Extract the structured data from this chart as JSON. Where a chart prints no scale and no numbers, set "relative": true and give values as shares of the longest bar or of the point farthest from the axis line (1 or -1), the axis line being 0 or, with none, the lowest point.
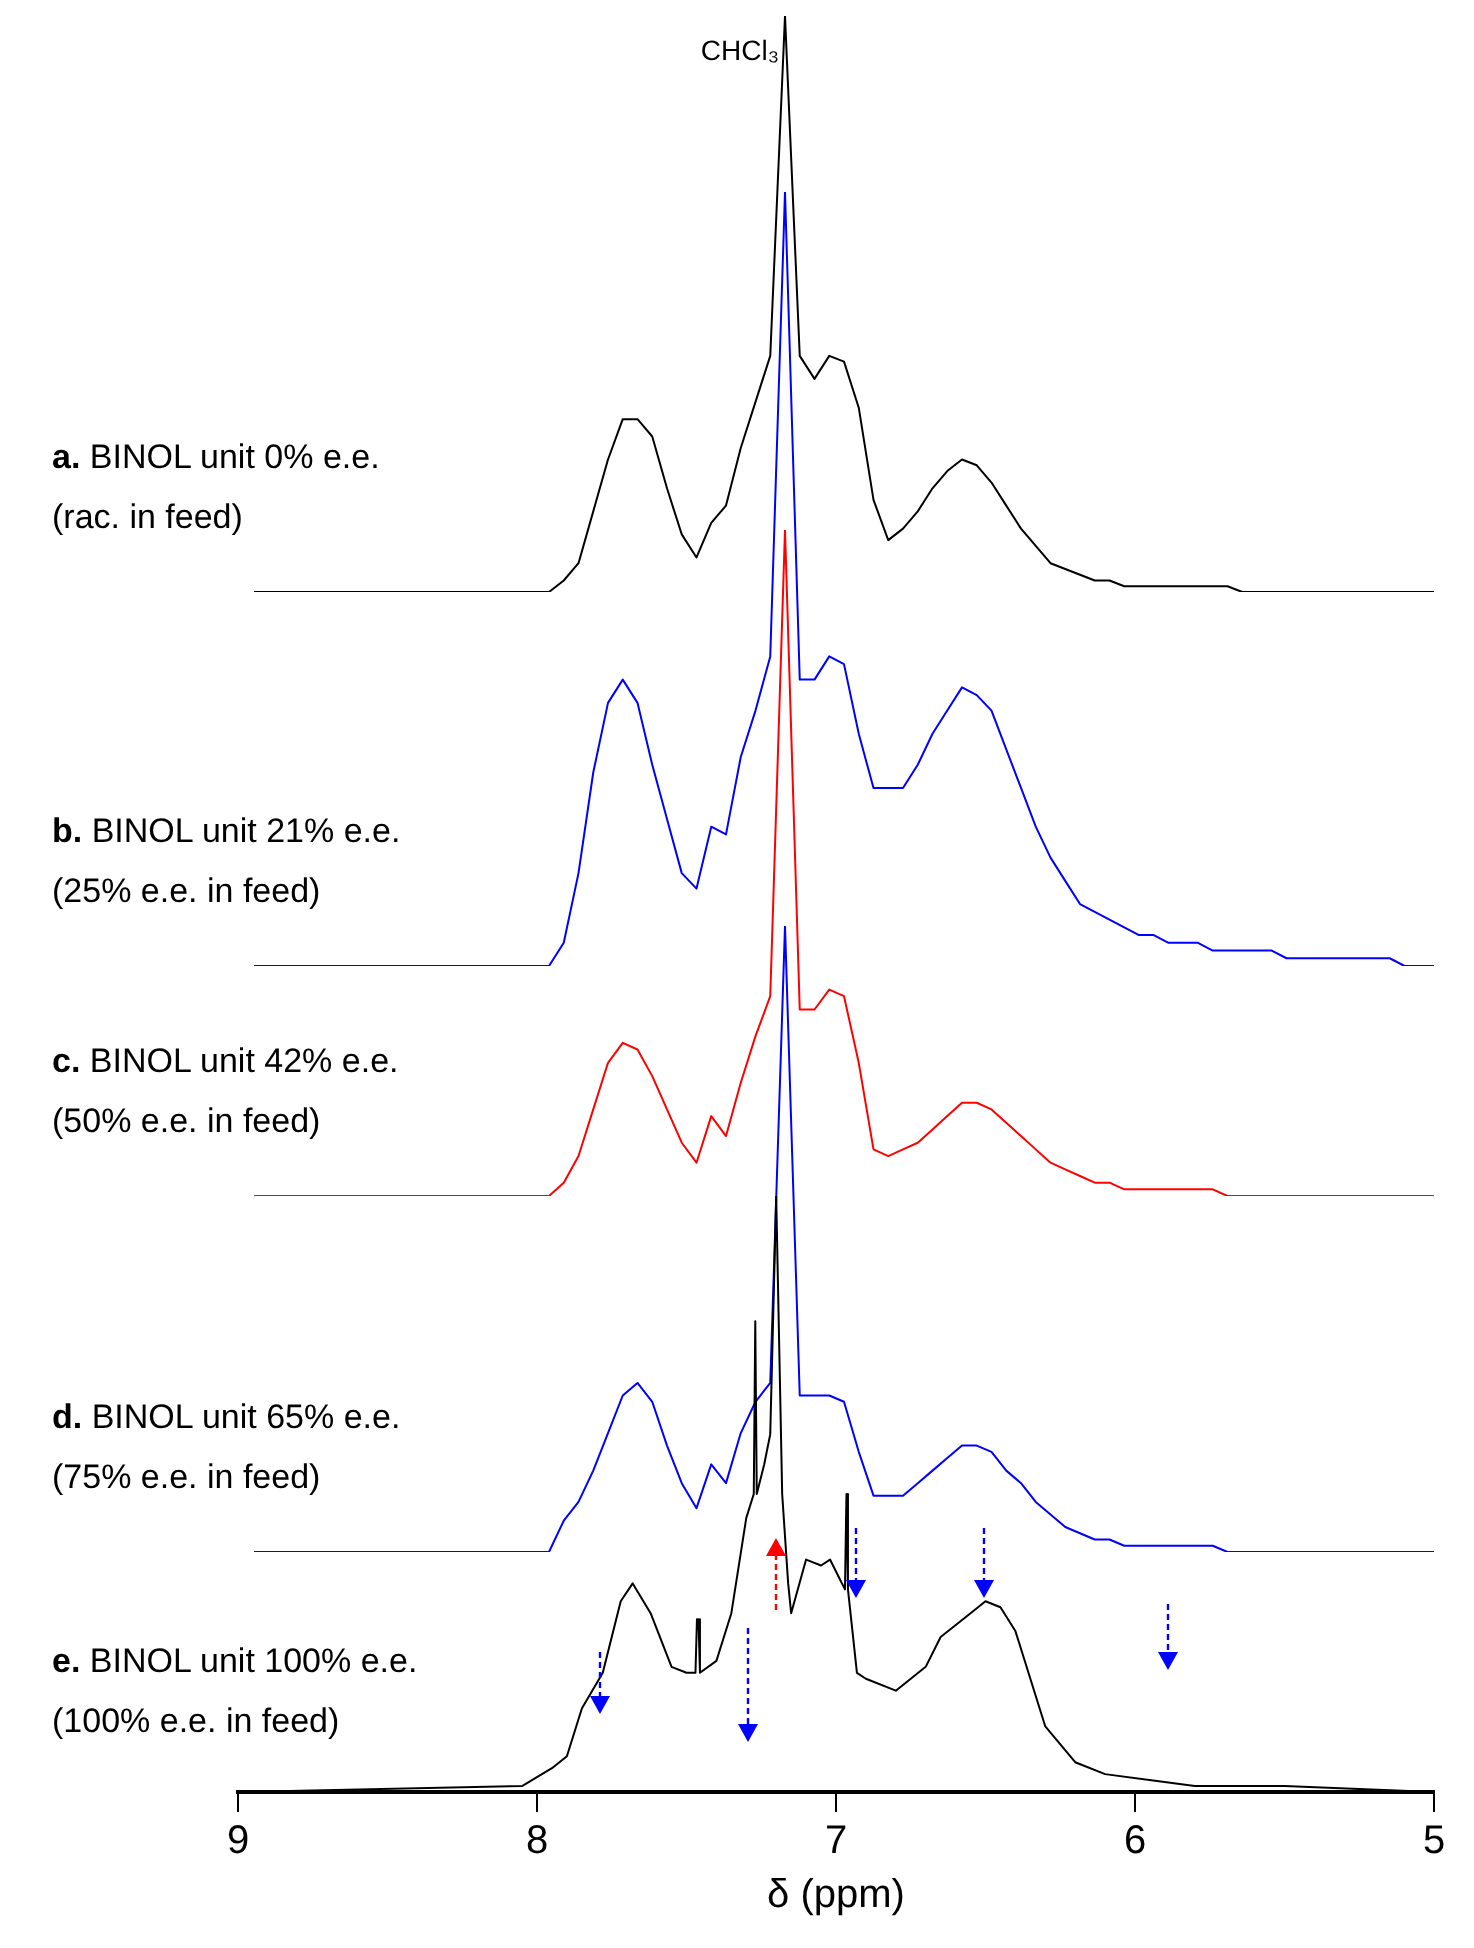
{
  "chart_data": [
    {
      "type": "line",
      "relative": true,
      "tick_labels": false,
      "annotations": [
        "a. BINOL unit 0% e.e.",
        "(rac. in feed)",
        "CHCl₃"
      ],
      "categories": [
        null,
        null,
        null,
        null,
        null,
        null,
        null,
        null,
        null,
        null,
        null,
        null,
        null,
        null,
        null,
        null,
        null,
        null,
        null,
        null,
        null,
        null,
        null,
        null,
        null,
        null,
        null,
        null,
        null,
        null,
        null,
        null,
        null,
        null,
        null,
        null,
        null,
        null,
        null,
        null,
        null,
        null,
        null,
        null,
        null,
        null,
        null,
        null,
        null,
        null,
        null,
        null,
        null,
        null,
        null,
        null,
        null,
        null,
        null,
        null,
        null,
        null,
        null,
        null,
        null,
        null,
        null,
        null,
        null,
        null,
        null,
        null,
        null,
        null,
        null,
        null,
        null,
        null,
        null,
        null,
        null
      ],
      "series": [
        {
          "color": "#000000",
          "values": [
            0,
            0,
            0,
            0,
            0,
            0,
            0,
            0,
            0,
            0,
            0,
            0,
            0,
            0,
            0,
            0,
            0,
            0,
            0,
            0,
            0,
            0.02,
            0.05,
            0.14,
            0.23,
            0.3,
            0.3,
            0.27,
            0.18,
            0.1,
            0.06,
            0.12,
            0.15,
            0.25,
            0.33,
            0.41,
            1,
            0.41,
            0.37,
            0.41,
            0.4,
            0.32,
            0.16,
            0.09,
            0.11,
            0.14,
            0.18,
            0.21,
            0.23,
            0.22,
            0.19,
            0.15,
            0.11,
            0.08,
            0.05,
            0.04,
            0.03,
            0.02,
            0.02,
            0.01,
            0.01,
            0.01,
            0.01,
            0.01,
            0.01,
            0.01,
            0.01,
            0,
            0,
            0,
            0,
            0,
            0,
            0,
            0,
            0,
            0,
            0,
            0,
            0,
            0
          ]
        }
      ]
    },
    {
      "type": "line",
      "relative": true,
      "tick_labels": false,
      "annotations": [
        "b. BINOL unit 21% e.e.",
        "(25% e.e. in feed)"
      ],
      "categories": [
        null,
        null,
        null,
        null,
        null,
        null,
        null,
        null,
        null,
        null,
        null,
        null,
        null,
        null,
        null,
        null,
        null,
        null,
        null,
        null,
        null,
        null,
        null,
        null,
        null,
        null,
        null,
        null,
        null,
        null,
        null,
        null,
        null,
        null,
        null,
        null,
        null,
        null,
        null,
        null,
        null,
        null,
        null,
        null,
        null,
        null,
        null,
        null,
        null,
        null,
        null,
        null,
        null,
        null,
        null,
        null,
        null,
        null,
        null,
        null,
        null,
        null,
        null,
        null,
        null,
        null,
        null,
        null,
        null,
        null,
        null,
        null,
        null,
        null,
        null,
        null,
        null,
        null,
        null,
        null,
        null
      ],
      "series": [
        {
          "color": "#0000ff",
          "values": [
            0,
            0,
            0,
            0,
            0,
            0,
            0,
            0,
            0,
            0,
            0,
            0,
            0,
            0,
            0,
            0,
            0,
            0,
            0,
            0,
            0,
            0.03,
            0.12,
            0.25,
            0.34,
            0.37,
            0.34,
            0.26,
            0.19,
            0.12,
            0.1,
            0.18,
            0.17,
            0.27,
            0.33,
            0.4,
            1,
            0.37,
            0.37,
            0.4,
            0.39,
            0.3,
            0.23,
            0.23,
            0.23,
            0.26,
            0.3,
            0.33,
            0.36,
            0.35,
            0.33,
            0.28,
            0.23,
            0.18,
            0.14,
            0.11,
            0.08,
            0.07,
            0.06,
            0.05,
            0.04,
            0.04,
            0.03,
            0.03,
            0.03,
            0.02,
            0.02,
            0.02,
            0.02,
            0.02,
            0.01,
            0.01,
            0.01,
            0.01,
            0.01,
            0.01,
            0.01,
            0.01,
            0,
            0,
            0
          ]
        }
      ]
    },
    {
      "type": "line",
      "relative": true,
      "tick_labels": false,
      "annotations": [
        "c. BINOL unit 42% e.e.",
        "(50% e.e. in feed)"
      ],
      "categories": [
        null,
        null,
        null,
        null,
        null,
        null,
        null,
        null,
        null,
        null,
        null,
        null,
        null,
        null,
        null,
        null,
        null,
        null,
        null,
        null,
        null,
        null,
        null,
        null,
        null,
        null,
        null,
        null,
        null,
        null,
        null,
        null,
        null,
        null,
        null,
        null,
        null,
        null,
        null,
        null,
        null,
        null,
        null,
        null,
        null,
        null,
        null,
        null,
        null,
        null,
        null,
        null,
        null,
        null,
        null,
        null,
        null,
        null,
        null,
        null,
        null,
        null,
        null,
        null,
        null,
        null,
        null,
        null,
        null,
        null,
        null,
        null,
        null,
        null,
        null,
        null,
        null,
        null,
        null,
        null,
        null
      ],
      "series": [
        {
          "color": "#ff0000",
          "values": [
            0,
            0,
            0,
            0,
            0,
            0,
            0,
            0,
            0,
            0,
            0,
            0,
            0,
            0,
            0,
            0,
            0,
            0,
            0,
            0,
            0,
            0.02,
            0.06,
            0.13,
            0.2,
            0.23,
            0.22,
            0.18,
            0.13,
            0.08,
            0.05,
            0.12,
            0.09,
            0.17,
            0.24,
            0.3,
            1,
            0.28,
            0.28,
            0.31,
            0.3,
            0.2,
            0.07,
            0.06,
            0.07,
            0.08,
            0.1,
            0.12,
            0.14,
            0.14,
            0.13,
            0.11,
            0.09,
            0.07,
            0.05,
            0.04,
            0.03,
            0.02,
            0.02,
            0.01,
            0.01,
            0.01,
            0.01,
            0.01,
            0.01,
            0.01,
            0,
            0,
            0,
            0,
            0,
            0,
            0,
            0,
            0,
            0,
            0,
            0,
            0,
            0,
            0
          ]
        }
      ]
    },
    {
      "type": "line",
      "relative": true,
      "tick_labels": false,
      "annotations": [
        "d. BINOL unit 65% e.e.",
        "(75% e.e. in feed)"
      ],
      "categories": [
        null,
        null,
        null,
        null,
        null,
        null,
        null,
        null,
        null,
        null,
        null,
        null,
        null,
        null,
        null,
        null,
        null,
        null,
        null,
        null,
        null,
        null,
        null,
        null,
        null,
        null,
        null,
        null,
        null,
        null,
        null,
        null,
        null,
        null,
        null,
        null,
        null,
        null,
        null,
        null,
        null,
        null,
        null,
        null,
        null,
        null,
        null,
        null,
        null,
        null,
        null,
        null,
        null,
        null,
        null,
        null,
        null,
        null,
        null,
        null,
        null,
        null,
        null,
        null,
        null,
        null,
        null,
        null,
        null,
        null,
        null,
        null,
        null,
        null,
        null,
        null,
        null,
        null,
        null,
        null,
        null
      ],
      "series": [
        {
          "color": "#0000ff",
          "values": [
            0,
            0,
            0,
            0,
            0,
            0,
            0,
            0,
            0,
            0,
            0,
            0,
            0,
            0,
            0,
            0,
            0,
            0,
            0,
            0,
            0,
            0.05,
            0.08,
            0.13,
            0.19,
            0.25,
            0.27,
            0.24,
            0.17,
            0.11,
            0.07,
            0.14,
            0.11,
            0.19,
            0.24,
            0.27,
            1,
            0.25,
            0.25,
            0.25,
            0.24,
            0.16,
            0.09,
            0.09,
            0.09,
            0.11,
            0.13,
            0.15,
            0.17,
            0.17,
            0.16,
            0.13,
            0.11,
            0.08,
            0.06,
            0.04,
            0.03,
            0.02,
            0.02,
            0.01,
            0.01,
            0.01,
            0.01,
            0.01,
            0.01,
            0.01,
            0,
            0,
            0,
            0,
            0,
            0,
            0,
            0,
            0,
            0,
            0,
            0,
            0,
            0,
            0
          ]
        }
      ]
    },
    {
      "type": "line",
      "relative": true,
      "xlim": [
        9,
        5
      ],
      "xticks": [
        9,
        8,
        7,
        6,
        5
      ],
      "xlabel": "δ (ppm)",
      "annotations": [
        "e. BINOL unit 100% e.e.",
        "(100% e.e. in feed)"
      ],
      "series": [
        {
          "color": "#000000",
          "x": [
            9,
            8.05,
            7.95,
            7.9,
            7.85,
            7.78,
            7.72,
            7.68,
            7.62,
            7.55,
            7.5,
            7.47,
            7.465,
            7.46,
            7.455,
            7.4,
            7.35,
            7.3,
            7.275,
            7.27,
            7.265,
            7.24,
            7.22,
            7.2,
            7.18,
            7.16,
            7.15,
            7.1,
            7.05,
            7.02,
            6.99,
            6.97,
            6.965,
            6.96,
            6.93,
            6.9,
            6.8,
            6.7,
            6.65,
            6.55,
            6.5,
            6.45,
            6.4,
            6.3,
            6.2,
            6.1,
            5.8,
            5.5,
            5.0
          ],
          "values": [
            0,
            0.01,
            0.04,
            0.06,
            0.14,
            0.2,
            0.32,
            0.35,
            0.3,
            0.21,
            0.2,
            0.2,
            0.29,
            0.29,
            0.2,
            0.22,
            0.3,
            0.46,
            0.5,
            0.79,
            0.5,
            0.55,
            0.6,
            1,
            0.5,
            0.35,
            0.3,
            0.39,
            0.38,
            0.39,
            0.36,
            0.34,
            0.5,
            0.34,
            0.2,
            0.19,
            0.17,
            0.21,
            0.26,
            0.3,
            0.32,
            0.31,
            0.27,
            0.11,
            0.05,
            0.03,
            0.01,
            0.01,
            0
          ]
        }
      ]
    }
  ]
}
